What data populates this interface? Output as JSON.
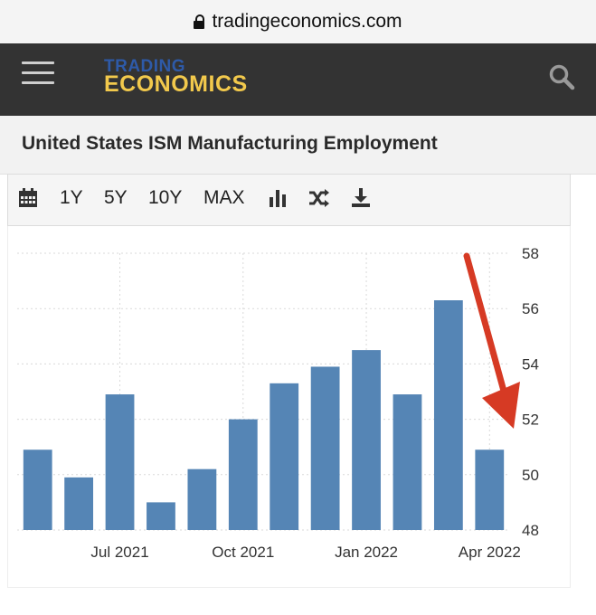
{
  "browser": {
    "url": "tradingeconomics.com"
  },
  "header": {
    "logo_line1": "TRADING",
    "logo_line2": "ECONOMICS"
  },
  "page": {
    "title": "United States ISM Manufacturing Employment"
  },
  "toolbar": {
    "r1": "1Y",
    "r5": "5Y",
    "r10": "10Y",
    "max": "MAX"
  },
  "colors": {
    "bar": "#5585b5",
    "arrow": "#d63a24",
    "header_bg": "#333333",
    "logo_top": "#2e5aa8",
    "logo_bottom": "#f2c94c"
  },
  "icons": [
    "calendar-icon",
    "bar-chart-icon",
    "shuffle-icon",
    "download-icon",
    "search-icon",
    "hamburger-icon"
  ],
  "chart_data": {
    "type": "bar",
    "categories": [
      "May 2021",
      "Jun 2021",
      "Jul 2021",
      "Aug 2021",
      "Sep 2021",
      "Oct 2021",
      "Nov 2021",
      "Dec 2021",
      "Jan 2022",
      "Feb 2022",
      "Mar 2022",
      "Apr 2022"
    ],
    "values": [
      50.9,
      49.9,
      52.9,
      49.0,
      50.2,
      52.0,
      53.3,
      53.9,
      54.5,
      52.9,
      56.3,
      50.9
    ],
    "title": "",
    "xlabel": "",
    "ylabel": "",
    "ylim": [
      48,
      58
    ],
    "yticks": [
      "48",
      "50",
      "52",
      "54",
      "56",
      "58"
    ],
    "xtick_labels": [
      {
        "label": "Jul 2021",
        "category": "Jul 2021"
      },
      {
        "label": "Oct 2021",
        "category": "Oct 2021"
      },
      {
        "label": "Jan 2022",
        "category": "Jan 2022"
      },
      {
        "label": "Apr 2022",
        "category": "Apr 2022"
      }
    ],
    "grid": true,
    "y_axis_side": "right",
    "annotation": "red arrow pointing down to the latest bar"
  }
}
